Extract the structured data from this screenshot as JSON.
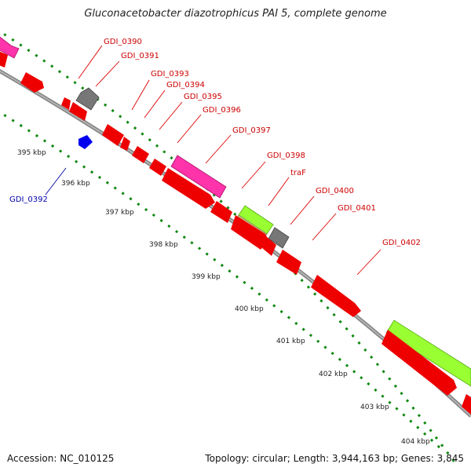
{
  "title": "Gluconacetobacter diazotrophicus PAI 5, complete genome",
  "footer": {
    "accession_label": "Accession: NC_010125",
    "summary": "Topology: circular; Length: 3,944,163 bp; Genes: 3,845"
  },
  "colors": {
    "cds": "#ff0000",
    "rna": "#0000ff",
    "pseudo": "#808080",
    "magenta_feature": "#ff33aa",
    "lime_feature": "#99ff33",
    "olive_feature": "#c8c88a",
    "backbone": "#888888",
    "tick_dots": "#118811",
    "gene_label": "#cc0000",
    "rna_label": "#0000aa"
  },
  "ticks": [
    {
      "label": "395 kbp"
    },
    {
      "label": "396 kbp"
    },
    {
      "label": "397 kbp"
    },
    {
      "label": "398 kbp"
    },
    {
      "label": "399 kbp"
    },
    {
      "label": "400 kbp"
    },
    {
      "label": "401 kbp"
    },
    {
      "label": "402 kbp"
    },
    {
      "label": "403 kbp"
    },
    {
      "label": "404 kbp"
    }
  ],
  "gene_labels": [
    {
      "text": "GDI_0390"
    },
    {
      "text": "GDI_0391"
    },
    {
      "text": "GDI_0393"
    },
    {
      "text": "GDI_0394"
    },
    {
      "text": "GDI_0395"
    },
    {
      "text": "GDI_0396"
    },
    {
      "text": "GDI_0397"
    },
    {
      "text": "GDI_0398"
    },
    {
      "text": "traF"
    },
    {
      "text": "GDI_0400"
    },
    {
      "text": "GDI_0401"
    },
    {
      "text": "GDI_0402"
    },
    {
      "text": "GDI_0392"
    }
  ]
}
